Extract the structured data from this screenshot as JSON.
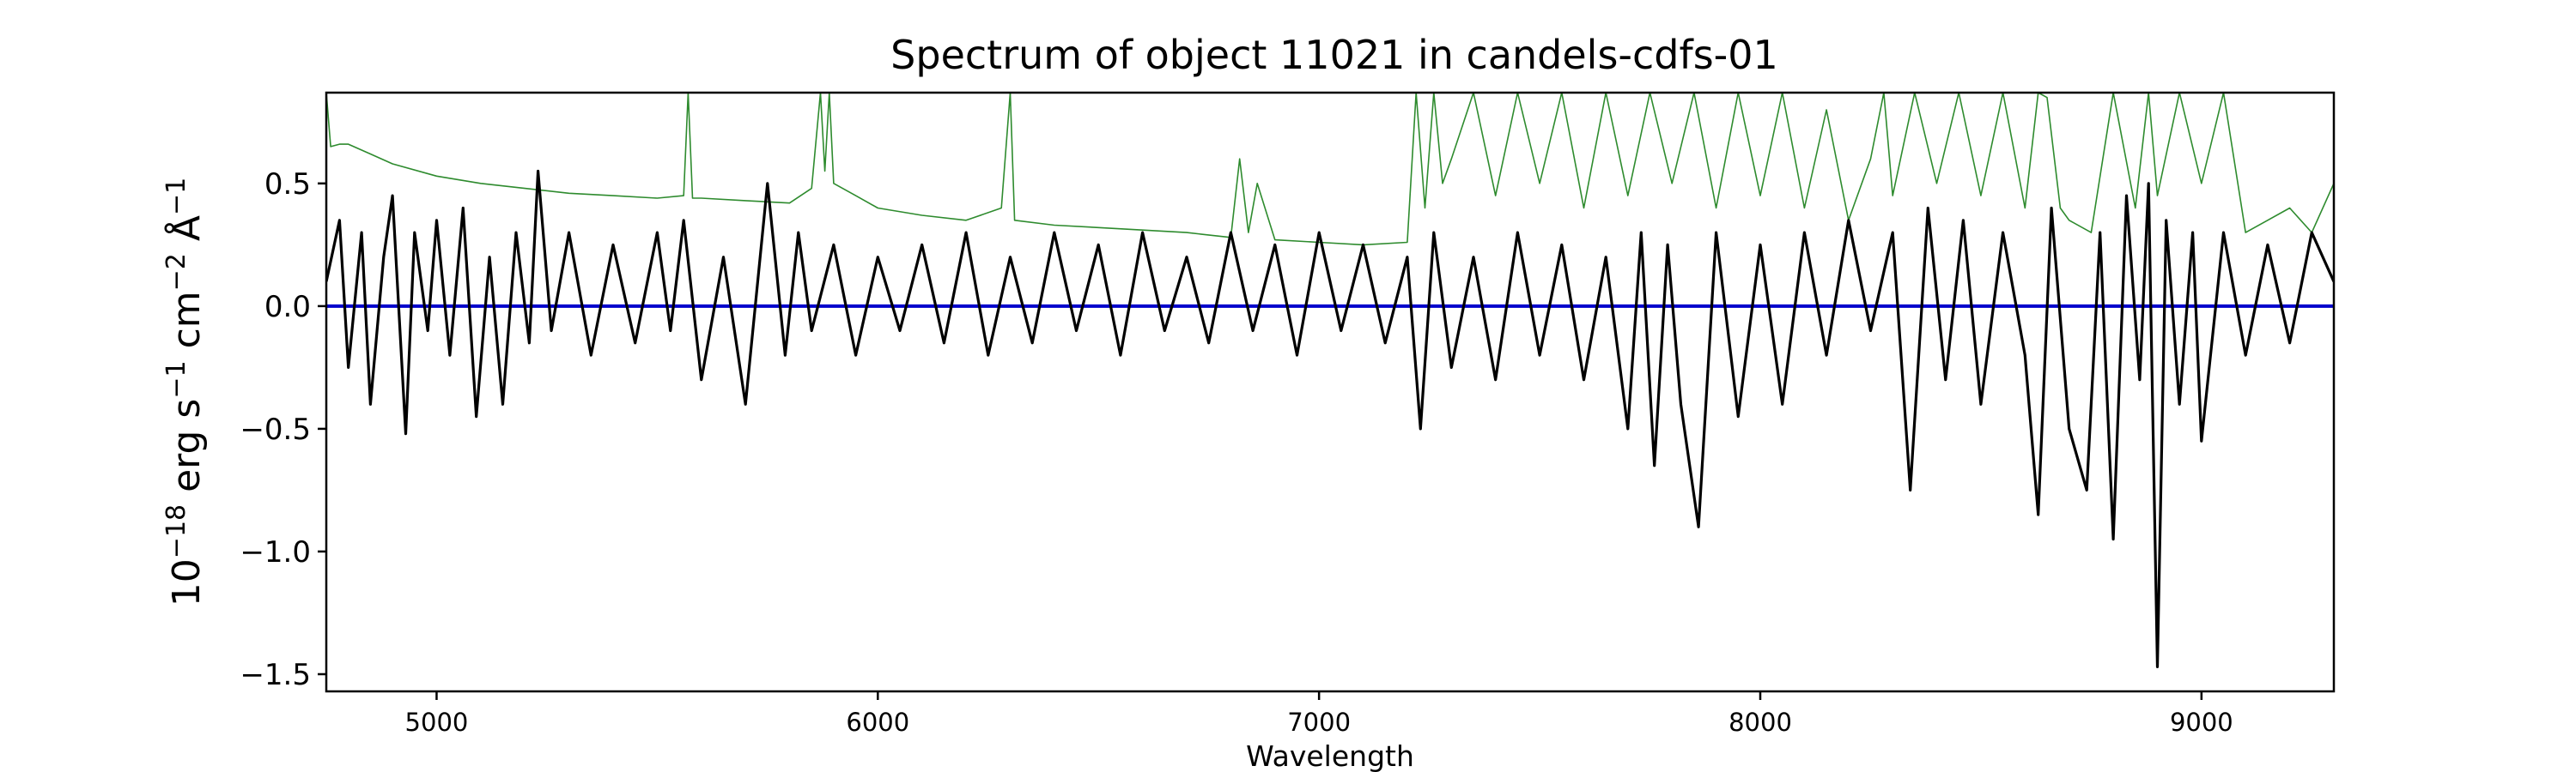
{
  "chart_data": {
    "type": "line",
    "title": "Spectrum of object 11021 in candels-cdfs-01",
    "xlabel": "Wavelength",
    "ylabel": {
      "base": "10",
      "exp1": "−18",
      "mid1": " erg s",
      "exp2": "−1",
      "mid2": " cm",
      "exp3": "−2",
      "mid3": " Å",
      "exp4": "−1"
    },
    "xlim": [
      4750,
      9300
    ],
    "ylim": [
      -1.57,
      0.87
    ],
    "x_ticks": [
      5000,
      6000,
      7000,
      8000,
      9000
    ],
    "x_tick_labels": [
      "5000",
      "6000",
      "7000",
      "8000",
      "9000"
    ],
    "y_ticks": [
      0.5,
      0.0,
      -0.5,
      -1.0,
      -1.5
    ],
    "y_tick_labels": [
      "0.5",
      "0.0",
      "−0.5",
      "−1.0",
      "−1.5"
    ],
    "grid": false,
    "series": [
      {
        "role": "spectrum",
        "color": "#000000",
        "x": [
          4750,
          4780,
          4800,
          4830,
          4850,
          4880,
          4900,
          4930,
          4950,
          4980,
          5000,
          5030,
          5060,
          5090,
          5120,
          5150,
          5180,
          5210,
          5230,
          5260,
          5300,
          5350,
          5400,
          5450,
          5500,
          5530,
          5560,
          5600,
          5650,
          5700,
          5750,
          5790,
          5820,
          5850,
          5900,
          5950,
          6000,
          6050,
          6100,
          6150,
          6200,
          6250,
          6300,
          6350,
          6400,
          6450,
          6500,
          6550,
          6600,
          6650,
          6700,
          6750,
          6800,
          6850,
          6900,
          6950,
          7000,
          7050,
          7100,
          7150,
          7200,
          7230,
          7260,
          7300,
          7350,
          7400,
          7450,
          7500,
          7550,
          7600,
          7650,
          7700,
          7730,
          7760,
          7790,
          7820,
          7860,
          7900,
          7950,
          8000,
          8050,
          8100,
          8150,
          8200,
          8250,
          8300,
          8340,
          8380,
          8420,
          8460,
          8500,
          8550,
          8600,
          8630,
          8660,
          8700,
          8740,
          8770,
          8800,
          8830,
          8860,
          8880,
          8900,
          8920,
          8950,
          8980,
          9000,
          9050,
          9100,
          9150,
          9200,
          9250,
          9300
        ],
        "y": [
          0.1,
          0.35,
          -0.25,
          0.3,
          -0.4,
          0.2,
          0.45,
          -0.52,
          0.3,
          -0.1,
          0.35,
          -0.2,
          0.4,
          -0.45,
          0.2,
          -0.4,
          0.3,
          -0.15,
          0.55,
          -0.1,
          0.3,
          -0.2,
          0.25,
          -0.15,
          0.3,
          -0.1,
          0.35,
          -0.3,
          0.2,
          -0.4,
          0.5,
          -0.2,
          0.3,
          -0.1,
          0.25,
          -0.2,
          0.2,
          -0.1,
          0.25,
          -0.15,
          0.3,
          -0.2,
          0.2,
          -0.15,
          0.3,
          -0.1,
          0.25,
          -0.2,
          0.3,
          -0.1,
          0.2,
          -0.15,
          0.3,
          -0.1,
          0.25,
          -0.2,
          0.3,
          -0.1,
          0.25,
          -0.15,
          0.2,
          -0.5,
          0.3,
          -0.25,
          0.2,
          -0.3,
          0.3,
          -0.2,
          0.25,
          -0.3,
          0.2,
          -0.5,
          0.3,
          -0.65,
          0.25,
          -0.4,
          -0.9,
          0.3,
          -0.45,
          0.25,
          -0.4,
          0.3,
          -0.2,
          0.35,
          -0.1,
          0.3,
          -0.75,
          0.4,
          -0.3,
          0.35,
          -0.4,
          0.3,
          -0.2,
          -0.85,
          0.4,
          -0.5,
          -0.75,
          0.3,
          -0.95,
          0.45,
          -0.3,
          0.5,
          -1.47,
          0.35,
          -0.4,
          0.3,
          -0.55,
          0.3,
          -0.2,
          0.25,
          -0.15,
          0.3,
          0.1
        ]
      },
      {
        "role": "error",
        "color": "#2e8b2e",
        "x": [
          4750,
          4760,
          4780,
          4800,
          4850,
          4900,
          5000,
          5100,
          5200,
          5300,
          5400,
          5500,
          5560,
          5570,
          5580,
          5600,
          5700,
          5800,
          5850,
          5870,
          5880,
          5890,
          5900,
          5950,
          6000,
          6100,
          6200,
          6280,
          6300,
          6310,
          6400,
          6500,
          6600,
          6700,
          6800,
          6820,
          6840,
          6860,
          6900,
          7000,
          7100,
          7200,
          7220,
          7240,
          7260,
          7280,
          7300,
          7350,
          7400,
          7450,
          7500,
          7550,
          7600,
          7650,
          7700,
          7750,
          7800,
          7850,
          7900,
          7950,
          8000,
          8050,
          8100,
          8150,
          8200,
          8250,
          8280,
          8300,
          8350,
          8400,
          8450,
          8500,
          8550,
          8600,
          8630,
          8650,
          8680,
          8700,
          8750,
          8800,
          8850,
          8880,
          8900,
          8950,
          9000,
          9050,
          9100,
          9150,
          9200,
          9250,
          9300
        ],
        "y": [
          0.87,
          0.65,
          0.66,
          0.66,
          0.62,
          0.58,
          0.53,
          0.5,
          0.48,
          0.46,
          0.45,
          0.44,
          0.45,
          0.87,
          0.44,
          0.44,
          0.43,
          0.42,
          0.48,
          0.87,
          0.55,
          0.87,
          0.5,
          0.45,
          0.4,
          0.37,
          0.35,
          0.4,
          0.87,
          0.35,
          0.33,
          0.32,
          0.31,
          0.3,
          0.28,
          0.6,
          0.3,
          0.5,
          0.27,
          0.26,
          0.25,
          0.26,
          0.87,
          0.4,
          0.87,
          0.5,
          0.6,
          0.87,
          0.45,
          0.87,
          0.5,
          0.87,
          0.4,
          0.87,
          0.45,
          0.87,
          0.5,
          0.87,
          0.4,
          0.87,
          0.45,
          0.87,
          0.4,
          0.8,
          0.35,
          0.6,
          0.87,
          0.45,
          0.87,
          0.5,
          0.87,
          0.45,
          0.87,
          0.4,
          0.87,
          0.85,
          0.4,
          0.35,
          0.3,
          0.87,
          0.4,
          0.87,
          0.45,
          0.87,
          0.5,
          0.87,
          0.3,
          0.35,
          0.4,
          0.3,
          0.5
        ]
      },
      {
        "role": "zero",
        "color": "#0000cc",
        "x": [
          4750,
          9300
        ],
        "y": [
          0,
          0
        ]
      }
    ]
  }
}
